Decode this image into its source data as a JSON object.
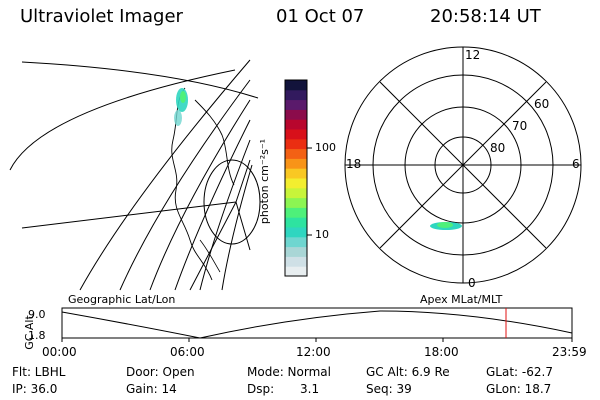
{
  "header": {
    "title": "Ultraviolet Imager",
    "date": "01 Oct 07",
    "time": "20:58:14 UT"
  },
  "colorbar": {
    "unit_label": "photon cm⁻²s⁻¹",
    "ticks": [
      "100",
      "10"
    ],
    "colors": [
      "#e8eef0",
      "#cfe0e6",
      "#a9d6d6",
      "#6fd6d0",
      "#2fd6c0",
      "#2ee3a0",
      "#4ef07a",
      "#8cf552",
      "#c8f43a",
      "#f3ee2f",
      "#f9c823",
      "#f89418",
      "#f36114",
      "#ea2e12",
      "#d8101a",
      "#b8062d",
      "#8b0c4b",
      "#5a1a6b",
      "#321a5e",
      "#12133b"
    ]
  },
  "polar_plot": {
    "mlt_labels": [
      "12",
      "18",
      "6",
      "0"
    ],
    "lat_labels": [
      "60",
      "70",
      "80"
    ]
  },
  "timeline": {
    "left_label": "Geographic Lat/Lon",
    "right_label": "Apex MLat/MLT",
    "y_axis_label": "GC Alt",
    "y_ticks": [
      "9.0",
      "1.8"
    ],
    "x_ticks": [
      "00:00",
      "06:00",
      "12:00",
      "18:00",
      "23:59"
    ],
    "marker_color": "#e01010"
  },
  "status": {
    "row1": {
      "flt": "Flt: LBHL",
      "door": "Door: Open",
      "mode": "Mode: Normal",
      "gcalt": "GC Alt: 6.9 Re",
      "glat": "GLat: -62.7"
    },
    "row2": {
      "ip": "IP: 36.0",
      "gain": "Gain: 14",
      "dsp_label": "Dsp:",
      "dsp_value": "3.1",
      "seq": "Seq: 39",
      "glon": "GLon: 18.7"
    }
  }
}
